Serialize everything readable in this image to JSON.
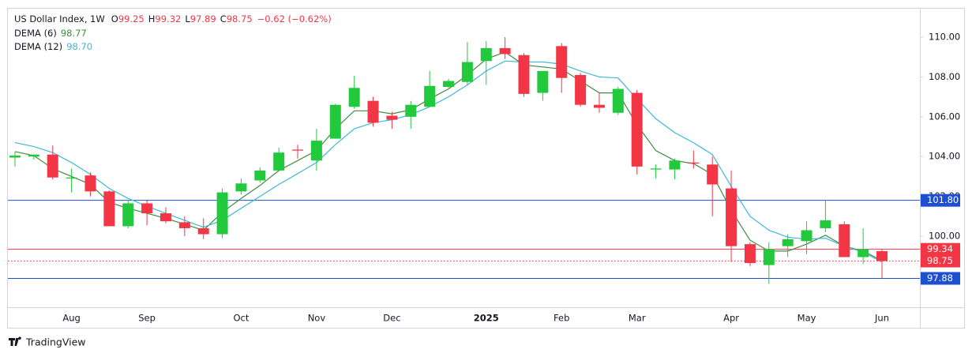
{
  "chart_data": {
    "type": "candlestick",
    "header": {
      "title": "US Dollar Index, 1W",
      "ohlc": [
        {
          "key": "O",
          "value": "99.25"
        },
        {
          "key": "H",
          "value": "99.32"
        },
        {
          "key": "L",
          "value": "97.89"
        },
        {
          "key": "C",
          "value": "98.75"
        }
      ],
      "change": "−0.62 (−0.62%)",
      "indicators": [
        {
          "name": "DEMA (6)",
          "value": "98.77"
        },
        {
          "name": "DEMA (12)",
          "value": "98.70"
        }
      ]
    },
    "categories": [
      null,
      null,
      null,
      "Aug",
      null,
      null,
      null,
      "Sep",
      null,
      null,
      null,
      null,
      "Oct",
      null,
      null,
      null,
      "Nov",
      null,
      null,
      null,
      "Dec",
      null,
      null,
      null,
      null,
      "2025",
      null,
      null,
      null,
      "Feb",
      null,
      null,
      null,
      "Mar",
      null,
      null,
      null,
      null,
      "Apr",
      null,
      null,
      null,
      "May",
      null,
      null,
      null,
      "Jun"
    ],
    "series": [
      {
        "name": "US Dollar Index, 1W",
        "kind": "ohlc",
        "up_color": "#22c93d",
        "down_color": "#f23645",
        "open": [
          103.95,
          104.0,
          104.1,
          102.9,
          103.05,
          102.25,
          100.5,
          101.65,
          101.15,
          100.7,
          100.4,
          100.1,
          102.25,
          102.8,
          103.3,
          104.35,
          103.8,
          104.9,
          106.5,
          106.8,
          106.05,
          106.0,
          106.5,
          107.5,
          107.75,
          108.8,
          109.45,
          109.1,
          107.2,
          109.55,
          108.1,
          106.6,
          106.2,
          107.2,
          103.35,
          103.35,
          103.7,
          103.6,
          102.4,
          99.6,
          98.55,
          99.5,
          99.75,
          100.4,
          100.6,
          98.95,
          99.25
        ],
        "high": [
          104.25,
          104.1,
          104.55,
          103.4,
          103.2,
          102.3,
          101.8,
          101.8,
          101.45,
          101.0,
          100.9,
          102.4,
          102.9,
          103.45,
          104.45,
          104.6,
          105.4,
          106.65,
          108.05,
          107.0,
          106.25,
          106.8,
          108.3,
          107.9,
          109.75,
          109.8,
          110.0,
          109.2,
          108.3,
          109.7,
          108.2,
          107.2,
          107.5,
          107.35,
          103.6,
          103.9,
          104.3,
          104.0,
          103.3,
          99.7,
          99.7,
          100.1,
          100.75,
          101.8,
          100.75,
          100.4,
          99.32
        ],
        "low": [
          103.5,
          103.85,
          102.85,
          102.2,
          102.0,
          100.5,
          100.4,
          100.55,
          100.65,
          100.0,
          99.85,
          99.9,
          102.1,
          102.7,
          103.3,
          103.9,
          103.3,
          104.9,
          106.4,
          105.5,
          105.4,
          105.4,
          106.5,
          107.45,
          107.6,
          107.6,
          108.9,
          107.0,
          106.8,
          107.2,
          106.5,
          106.2,
          106.1,
          103.1,
          102.9,
          102.85,
          103.4,
          101.0,
          98.7,
          98.5,
          97.6,
          98.95,
          99.1,
          100.2,
          98.95,
          98.6,
          97.89
        ],
        "close": [
          104.05,
          104.1,
          102.95,
          102.95,
          102.25,
          100.5,
          101.65,
          101.15,
          100.75,
          100.4,
          100.1,
          102.2,
          102.65,
          103.3,
          104.2,
          104.3,
          104.8,
          106.6,
          107.45,
          105.7,
          105.85,
          106.6,
          107.55,
          107.8,
          108.75,
          109.45,
          109.15,
          107.15,
          108.3,
          107.95,
          106.6,
          106.45,
          107.4,
          103.5,
          103.4,
          103.8,
          103.65,
          102.6,
          99.5,
          98.65,
          99.35,
          99.85,
          100.3,
          100.8,
          98.95,
          99.35,
          98.75
        ]
      },
      {
        "name": "DEMA (6)",
        "color": "#3d8b3d",
        "values": [
          104.25,
          104.05,
          103.4,
          103.0,
          102.6,
          101.7,
          101.4,
          101.15,
          100.9,
          100.6,
          100.3,
          101.2,
          101.9,
          102.55,
          103.3,
          103.8,
          104.3,
          105.4,
          106.3,
          106.3,
          106.15,
          106.35,
          106.9,
          107.4,
          108.1,
          108.9,
          109.25,
          108.6,
          108.5,
          108.4,
          107.8,
          107.2,
          107.2,
          105.6,
          104.3,
          103.8,
          103.65,
          103.1,
          101.3,
          99.8,
          99.25,
          99.25,
          99.6,
          100.05,
          99.5,
          99.25,
          98.77
        ]
      },
      {
        "name": "DEMA (12)",
        "color": "#3cb8d8",
        "values": [
          104.7,
          104.5,
          104.2,
          103.7,
          103.1,
          102.4,
          101.9,
          101.5,
          101.15,
          100.8,
          100.45,
          100.8,
          101.4,
          102.0,
          102.6,
          103.15,
          103.7,
          104.6,
          105.4,
          105.7,
          105.85,
          106.1,
          106.5,
          107.0,
          107.6,
          108.3,
          108.8,
          108.75,
          108.75,
          108.65,
          108.3,
          108.0,
          107.95,
          106.9,
          105.9,
          105.2,
          104.7,
          104.1,
          102.5,
          101.0,
          100.3,
          99.95,
          99.85,
          99.9,
          99.5,
          99.2,
          98.7
        ]
      }
    ],
    "ylim": [
      96.43,
      111.43
    ],
    "yticks": [
      {
        "value": 100,
        "label": "100.00"
      },
      {
        "value": 102,
        "label": "102.00"
      },
      {
        "value": 104,
        "label": "104.00"
      },
      {
        "value": 106,
        "label": "106.00"
      },
      {
        "value": 108,
        "label": "108.00"
      },
      {
        "value": 110,
        "label": "110.00"
      }
    ],
    "price_lines": [
      {
        "value": 101.8,
        "label": "101.80",
        "color": "#1e4fcf",
        "style": "solid"
      },
      {
        "value": 99.34,
        "label": "99.34",
        "color": "#f23645",
        "style": "solid"
      },
      {
        "value": 98.75,
        "label": "98.75",
        "color": "#f23645",
        "style": "dotted"
      },
      {
        "value": 97.88,
        "label": "97.88",
        "color": "#1e4fcf",
        "style": "solid"
      }
    ],
    "grid": false,
    "footer": "TradingView"
  }
}
